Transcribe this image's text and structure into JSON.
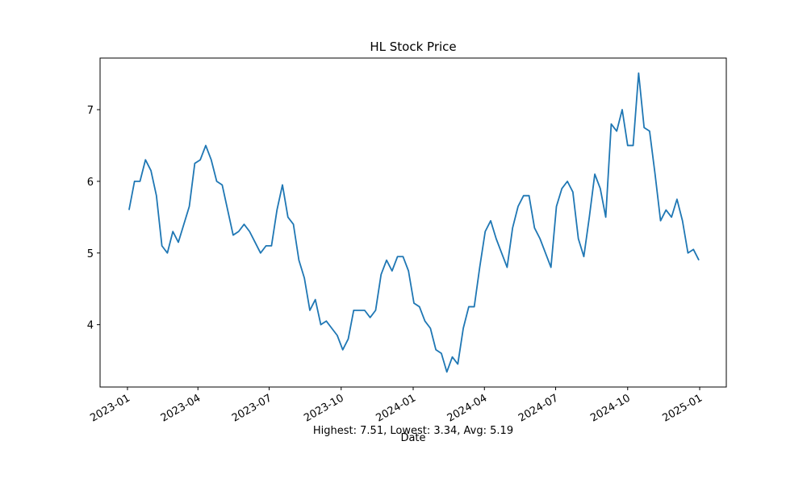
{
  "chart_data": {
    "type": "line",
    "title": "HL Stock Price",
    "xlabel": "Date",
    "annotation": "Highest: 7.51, Lowest: 3.34, Avg: 5.19",
    "color": "#1f77b4",
    "grid": false,
    "x": [
      "2023-01-03",
      "2023-01-10",
      "2023-01-17",
      "2023-01-24",
      "2023-01-31",
      "2023-02-07",
      "2023-02-14",
      "2023-02-21",
      "2023-02-28",
      "2023-03-07",
      "2023-03-14",
      "2023-03-21",
      "2023-03-28",
      "2023-04-04",
      "2023-04-11",
      "2023-04-18",
      "2023-04-25",
      "2023-05-02",
      "2023-05-09",
      "2023-05-16",
      "2023-05-23",
      "2023-05-30",
      "2023-06-06",
      "2023-06-13",
      "2023-06-20",
      "2023-06-27",
      "2023-07-04",
      "2023-07-11",
      "2023-07-18",
      "2023-07-25",
      "2023-08-01",
      "2023-08-08",
      "2023-08-15",
      "2023-08-22",
      "2023-08-29",
      "2023-09-05",
      "2023-09-12",
      "2023-09-19",
      "2023-09-26",
      "2023-10-03",
      "2023-10-10",
      "2023-10-17",
      "2023-10-24",
      "2023-10-31",
      "2023-11-07",
      "2023-11-14",
      "2023-11-21",
      "2023-11-28",
      "2023-12-05",
      "2023-12-12",
      "2023-12-19",
      "2023-12-26",
      "2024-01-02",
      "2024-01-09",
      "2024-01-16",
      "2024-01-23",
      "2024-01-30",
      "2024-02-06",
      "2024-02-13",
      "2024-02-20",
      "2024-02-27",
      "2024-03-05",
      "2024-03-12",
      "2024-03-19",
      "2024-03-26",
      "2024-04-02",
      "2024-04-09",
      "2024-04-16",
      "2024-04-23",
      "2024-04-30",
      "2024-05-07",
      "2024-05-14",
      "2024-05-21",
      "2024-05-28",
      "2024-06-04",
      "2024-06-11",
      "2024-06-18",
      "2024-06-25",
      "2024-07-02",
      "2024-07-09",
      "2024-07-16",
      "2024-07-23",
      "2024-07-30",
      "2024-08-06",
      "2024-08-13",
      "2024-08-20",
      "2024-08-27",
      "2024-09-03",
      "2024-09-10",
      "2024-09-17",
      "2024-09-24",
      "2024-10-01",
      "2024-10-08",
      "2024-10-15",
      "2024-10-22",
      "2024-10-29",
      "2024-11-05",
      "2024-11-12",
      "2024-11-19",
      "2024-11-26",
      "2024-12-03",
      "2024-12-10",
      "2024-12-17",
      "2024-12-24",
      "2024-12-31"
    ],
    "values": [
      5.6,
      6.0,
      6.0,
      6.3,
      6.15,
      5.8,
      5.1,
      5.0,
      5.3,
      5.15,
      5.4,
      5.65,
      6.25,
      6.3,
      6.5,
      6.3,
      6.0,
      5.95,
      5.6,
      5.25,
      5.3,
      5.4,
      5.3,
      5.15,
      5.0,
      5.1,
      5.1,
      5.6,
      5.95,
      5.5,
      5.4,
      4.9,
      4.65,
      4.2,
      4.35,
      4.0,
      4.05,
      3.95,
      3.85,
      3.65,
      3.8,
      4.2,
      4.2,
      4.2,
      4.1,
      4.2,
      4.7,
      4.9,
      4.75,
      4.95,
      4.95,
      4.75,
      4.3,
      4.25,
      4.05,
      3.95,
      3.65,
      3.6,
      3.34,
      3.55,
      3.45,
      3.95,
      4.25,
      4.25,
      4.8,
      5.3,
      5.45,
      5.2,
      5.0,
      4.8,
      5.35,
      5.65,
      5.8,
      5.8,
      5.35,
      5.2,
      5.0,
      4.8,
      5.65,
      5.9,
      6.0,
      5.85,
      5.2,
      4.95,
      5.5,
      6.1,
      5.9,
      5.5,
      6.8,
      6.7,
      7.0,
      6.5,
      6.5,
      7.51,
      6.75,
      6.7,
      6.1,
      5.45,
      5.6,
      5.5,
      5.75,
      5.45,
      5.0,
      5.05,
      4.9
    ],
    "xlim": [
      "2022-11-27",
      "2025-02-04"
    ],
    "xticks": [
      {
        "value": "2023-01-01",
        "label": "2023-01"
      },
      {
        "value": "2023-04-01",
        "label": "2023-04"
      },
      {
        "value": "2023-07-01",
        "label": "2023-07"
      },
      {
        "value": "2023-10-01",
        "label": "2023-10"
      },
      {
        "value": "2024-01-01",
        "label": "2024-01"
      },
      {
        "value": "2024-04-01",
        "label": "2024-04"
      },
      {
        "value": "2024-07-01",
        "label": "2024-07"
      },
      {
        "value": "2024-10-01",
        "label": "2024-10"
      },
      {
        "value": "2025-01-01",
        "label": "2025-01"
      }
    ],
    "ylim": [
      3.13,
      7.72
    ],
    "yticks": [
      4,
      5,
      6,
      7
    ]
  }
}
